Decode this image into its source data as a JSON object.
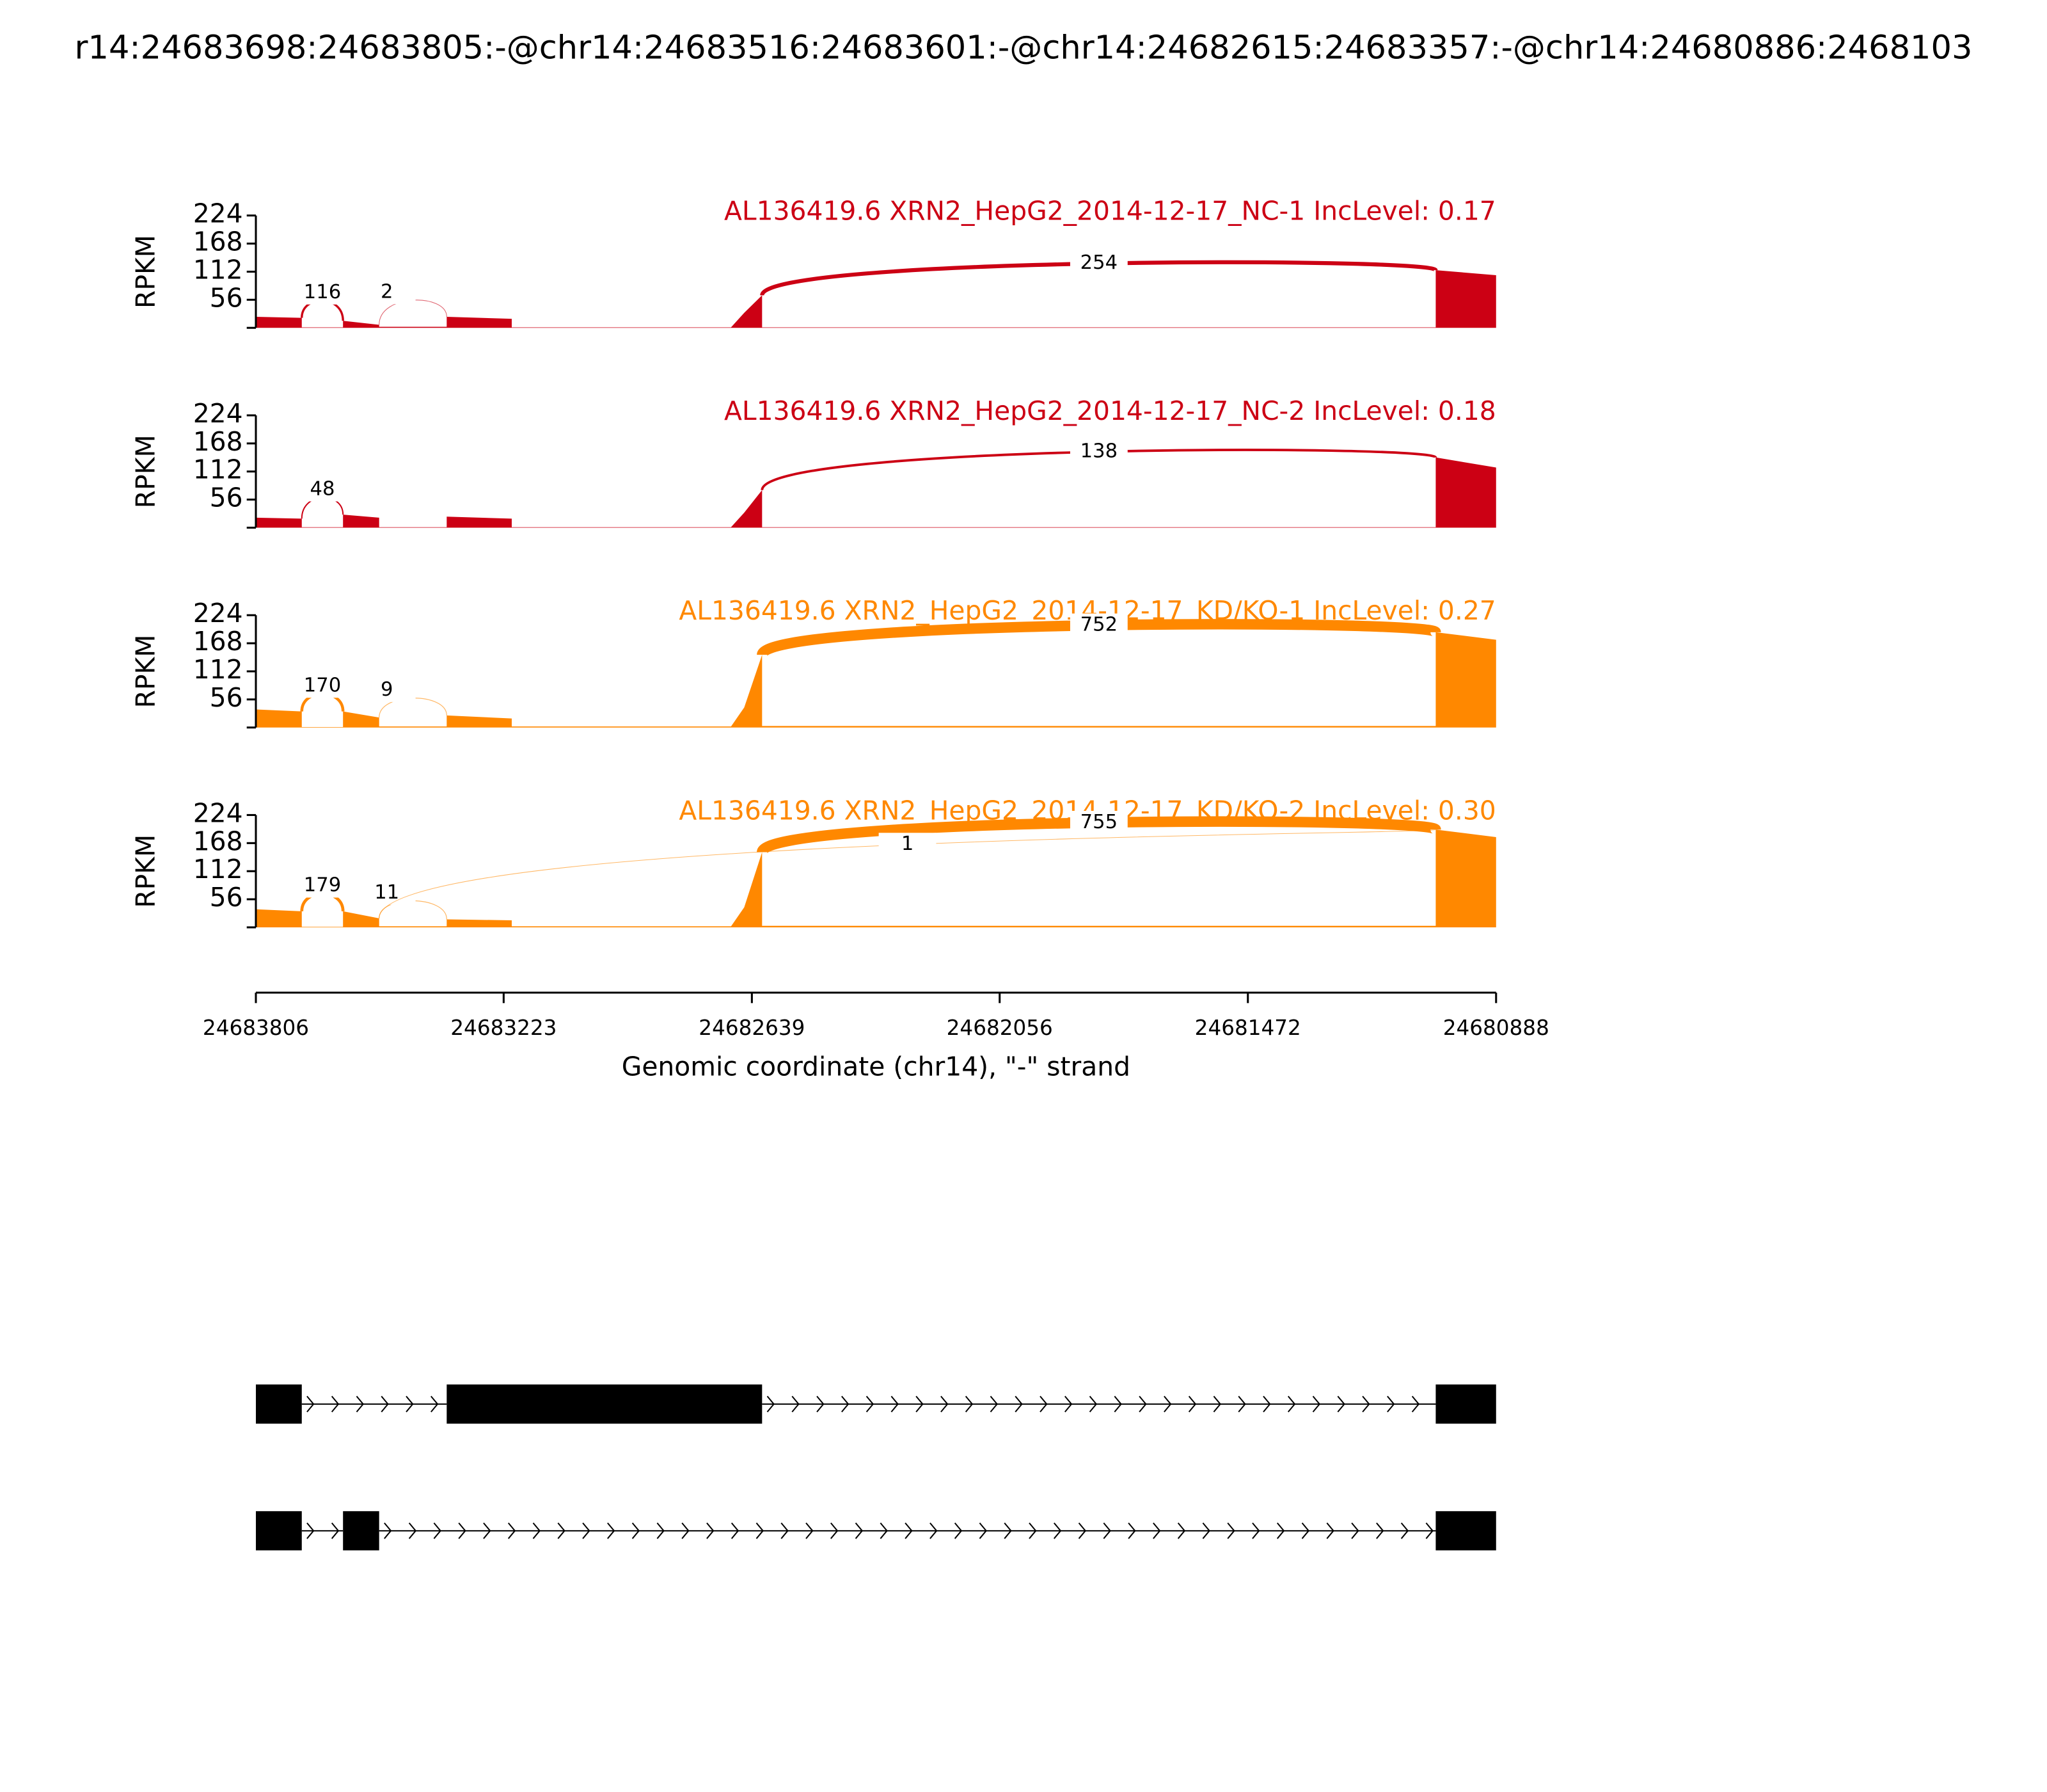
{
  "chart_data": {
    "type": "sashimi",
    "title": "r14:24683698:24683805:-@chr14:24683516:24683601:-@chr14:24682615:24683357:-@chr14:24680886:2468103",
    "xlabel": "Genomic coordinate (chr14), \"-\" strand",
    "xlim": [
      24683806,
      24680888
    ],
    "xticks": [
      24683806,
      24683223,
      24682639,
      24682056,
      24681472,
      24680888
    ],
    "panels": [
      {
        "title": "AL136419.6 XRN2_HepG2_2014-12-17_NC-1 IncLevel: 0.17",
        "color": "#cc0014",
        "ylabel": "RPKM",
        "ylim": [
          0,
          224
        ],
        "yticks": [
          56,
          112,
          168,
          224
        ],
        "x": [
          24683806,
          24683698,
          24683698,
          24683601,
          24683601,
          24683516,
          24683516,
          24683357,
          24683357,
          24683204,
          24683204,
          24682688,
          24682657,
          24682615,
          24682615,
          24681030,
          24681030,
          24680888
        ],
        "values": [
          22,
          20,
          1,
          1,
          14,
          6,
          2,
          2,
          22,
          18,
          1,
          1,
          30,
          65,
          1,
          1,
          115,
          105
        ],
        "junctions": [
          {
            "start": 24683698,
            "end": 24683601,
            "count": 116
          },
          {
            "start": 24683516,
            "end": 24683357,
            "count": 2
          },
          {
            "start": 24682615,
            "end": 24681030,
            "count": 254
          }
        ]
      },
      {
        "title": "AL136419.6 XRN2_HepG2_2014-12-17_NC-2 IncLevel: 0.18",
        "color": "#cc0014",
        "ylabel": "RPKM",
        "ylim": [
          0,
          224
        ],
        "yticks": [
          56,
          112,
          168,
          224
        ],
        "x": [
          24683806,
          24683698,
          24683698,
          24683601,
          24683601,
          24683516,
          24683516,
          24683357,
          24683357,
          24683204,
          24683204,
          24682688,
          24682657,
          24682615,
          24682615,
          24681030,
          24681030,
          24680888
        ],
        "values": [
          20,
          18,
          1,
          1,
          26,
          20,
          1,
          1,
          22,
          18,
          1,
          1,
          30,
          75,
          1,
          1,
          140,
          120
        ],
        "junctions": [
          {
            "start": 24683698,
            "end": 24683601,
            "count": 48
          },
          {
            "start": 24682615,
            "end": 24681030,
            "count": 138
          }
        ]
      },
      {
        "title": "AL136419.6 XRN2_HepG2_2014-12-17_KD/KO-1 IncLevel: 0.27",
        "color": "#ff8800",
        "ylabel": "RPKM",
        "ylim": [
          0,
          224
        ],
        "yticks": [
          56,
          112,
          168,
          224
        ],
        "x": [
          24683806,
          24683698,
          24683698,
          24683601,
          24683601,
          24683516,
          24683516,
          24683357,
          24683357,
          24683204,
          24683204,
          24682688,
          24682657,
          24682615,
          24682615,
          24681030,
          24681030,
          24680888
        ],
        "values": [
          36,
          32,
          1,
          1,
          32,
          20,
          2,
          2,
          24,
          18,
          2,
          2,
          40,
          145,
          3,
          3,
          190,
          175
        ],
        "junctions": [
          {
            "start": 24683698,
            "end": 24683601,
            "count": 170
          },
          {
            "start": 24683516,
            "end": 24683357,
            "count": 9
          },
          {
            "start": 24682615,
            "end": 24681030,
            "count": 752
          }
        ]
      },
      {
        "title": "AL136419.6 XRN2_HepG2_2014-12-17_KD/KO-2 IncLevel: 0.30",
        "color": "#ff8800",
        "ylabel": "RPKM",
        "ylim": [
          0,
          224
        ],
        "yticks": [
          56,
          112,
          168,
          224
        ],
        "x": [
          24683806,
          24683698,
          24683698,
          24683601,
          24683601,
          24683516,
          24683516,
          24683357,
          24683357,
          24683204,
          24683204,
          24682688,
          24682657,
          24682615,
          24682615,
          24681030,
          24681030,
          24680888
        ],
        "values": [
          36,
          32,
          1,
          1,
          32,
          18,
          2,
          2,
          16,
          14,
          2,
          2,
          40,
          150,
          3,
          3,
          195,
          180
        ],
        "junctions": [
          {
            "start": 24683698,
            "end": 24683601,
            "count": 179
          },
          {
            "start": 24683516,
            "end": 24683357,
            "count": 11
          },
          {
            "start": 24682615,
            "end": 24681030,
            "count": 755
          },
          {
            "start": 24683516,
            "end": 24681030,
            "count": 1
          }
        ]
      }
    ],
    "transcripts": [
      {
        "exons": [
          [
            24683806,
            24683698
          ],
          [
            24683357,
            24682615
          ],
          [
            24681030,
            24680888
          ]
        ]
      },
      {
        "exons": [
          [
            24683806,
            24683698
          ],
          [
            24683601,
            24683516
          ],
          [
            24681030,
            24680888
          ]
        ]
      }
    ]
  }
}
